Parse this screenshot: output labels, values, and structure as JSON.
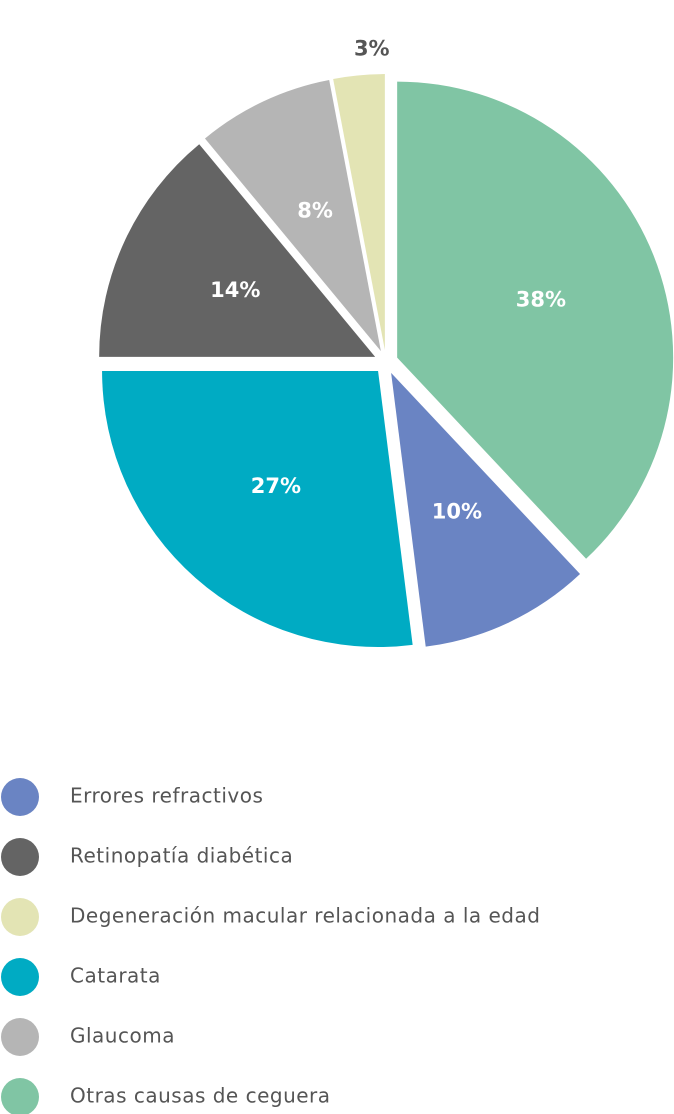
{
  "chart_data": {
    "type": "pie",
    "categories": [
      "Errores refractivos",
      "Retinopatía diabética",
      "Degeneración macular relacionada a la edad",
      "Catarata",
      "Glaucoma",
      "Otras causas de ceguera"
    ],
    "values": [
      10,
      14,
      3,
      27,
      8,
      38
    ],
    "value_labels": [
      "10%",
      "14%",
      "3%",
      "27%",
      "8%",
      "38%"
    ],
    "colors": [
      "#6a84c3",
      "#646464",
      "#e3e4b4",
      "#00abc3",
      "#b5b5b5",
      "#80c5a4"
    ]
  }
}
